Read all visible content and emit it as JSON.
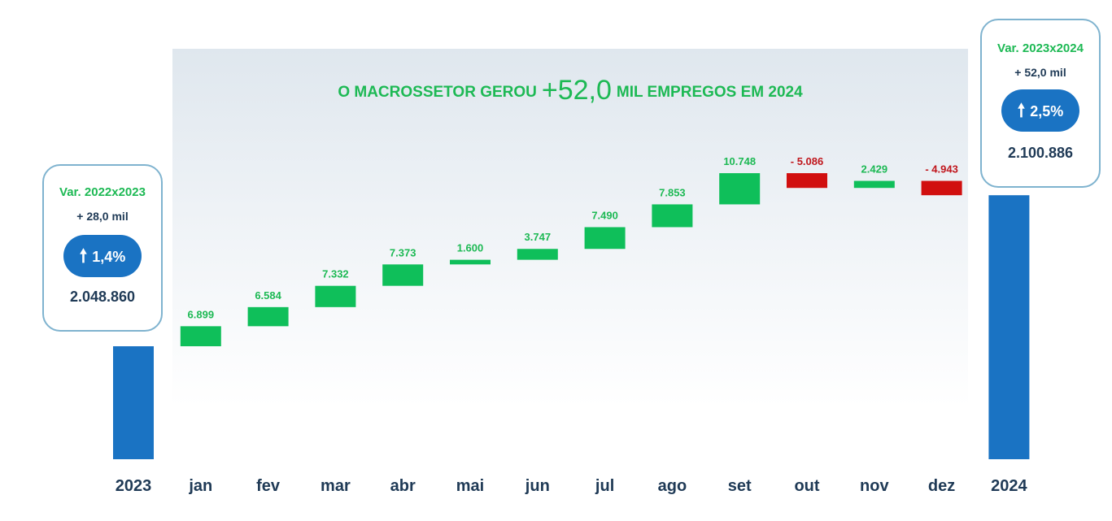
{
  "title": {
    "prefix": "O MACROSSETOR GEROU",
    "value": "+52,0",
    "suffix": "MIL EMPREGOS EM 2024"
  },
  "colors": {
    "positive": "#0fbf5a",
    "negative": "#d10f0f",
    "total": "#1a73c3",
    "title": "#1db954"
  },
  "left_box": {
    "var": "Var. 2022x2023",
    "delta": "+ 28,0 mil",
    "pct": "1,4%",
    "total": "2.048.860"
  },
  "right_box": {
    "var": "Var. 2023x2024",
    "delta": "+ 52,0 mil",
    "pct": "2,5%",
    "total": "2.100.886"
  },
  "arrow_icon": "up-arrow-icon",
  "chart_data": {
    "type": "waterfall",
    "categories": [
      "2023",
      "jan",
      "fev",
      "mar",
      "abr",
      "mai",
      "jun",
      "jul",
      "ago",
      "set",
      "out",
      "nov",
      "dez",
      "2024"
    ],
    "start": {
      "label": "2023",
      "value": 2048860
    },
    "end": {
      "label": "2024",
      "value": 2100886
    },
    "changes": [
      6899,
      6584,
      7332,
      7373,
      1600,
      3747,
      7490,
      7853,
      10748,
      -5086,
      2429,
      -4943
    ],
    "change_labels": [
      "6.899",
      "6.584",
      "7.332",
      "7.373",
      "1.600",
      "3.747",
      "7.490",
      "7.853",
      "10.748",
      "- 5.086",
      "2.429",
      "- 4.943"
    ]
  }
}
